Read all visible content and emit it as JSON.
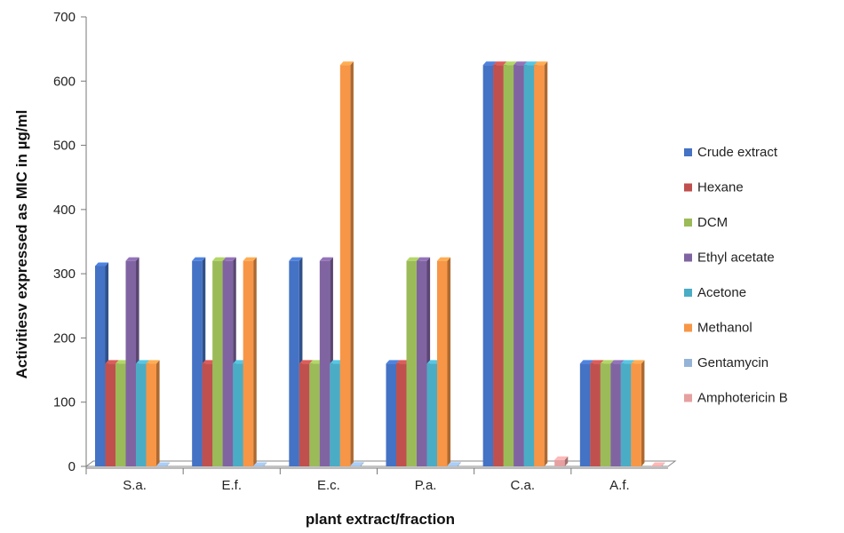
{
  "chart_data": {
    "type": "bar",
    "title": "",
    "xlabel": "plant extract/fraction",
    "ylabel": "Activitiesv expressed as MIC in µg/ml",
    "categories": [
      "S.a.",
      "E.f.",
      "E.c.",
      "P.a.",
      "C.a.",
      "A.f."
    ],
    "ylim": [
      0,
      700
    ],
    "yticks": [
      0,
      100,
      200,
      300,
      400,
      500,
      600,
      700
    ],
    "grid": false,
    "legend_position": "right",
    "series": [
      {
        "name": "Crude extract",
        "color": "#4472C4",
        "values": [
          312,
          320,
          320,
          160,
          625,
          160
        ]
      },
      {
        "name": "Hexane",
        "color": "#C0504D",
        "values": [
          160,
          160,
          160,
          160,
          625,
          160
        ]
      },
      {
        "name": "DCM",
        "color": "#9BBB59",
        "values": [
          160,
          320,
          160,
          320,
          625,
          160
        ]
      },
      {
        "name": "Ethyl acetate",
        "color": "#8064A2",
        "values": [
          320,
          320,
          320,
          320,
          625,
          160
        ]
      },
      {
        "name": "Acetone",
        "color": "#4BACC6",
        "values": [
          160,
          160,
          160,
          160,
          625,
          160
        ]
      },
      {
        "name": "Methanol",
        "color": "#F79646",
        "values": [
          160,
          320,
          625,
          320,
          625,
          160
        ]
      },
      {
        "name": "Gentamycin",
        "color": "#95B3D7",
        "values": [
          0.5,
          0.5,
          1,
          1,
          null,
          null
        ]
      },
      {
        "name": "Amphotericin B",
        "color": "#E6A0A0",
        "values": [
          null,
          null,
          null,
          null,
          10,
          0.5
        ]
      }
    ]
  }
}
